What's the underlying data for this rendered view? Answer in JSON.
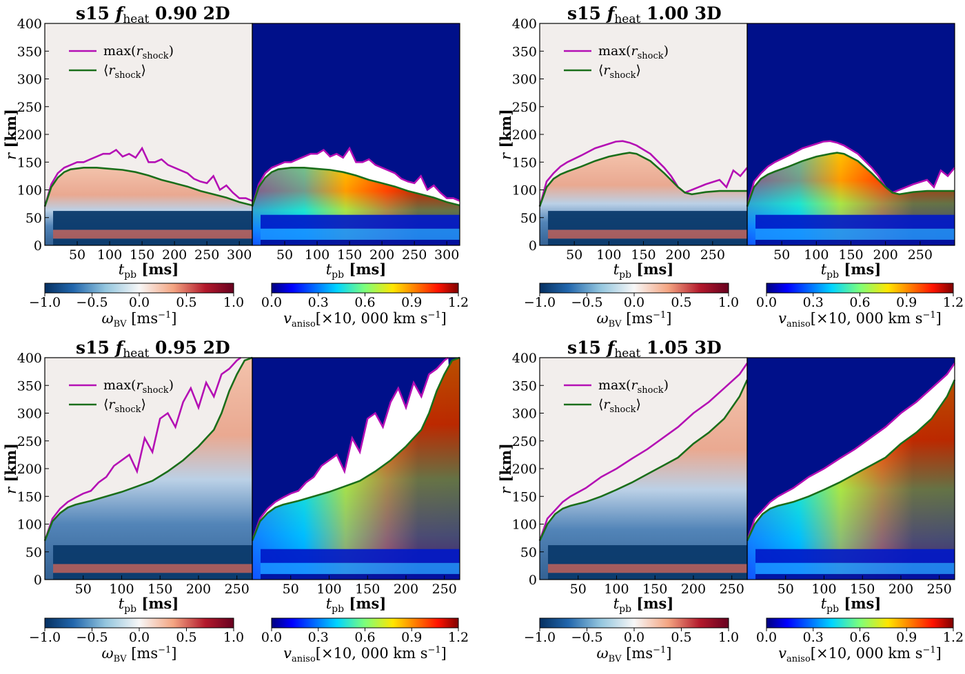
{
  "colors": {
    "max_shock": "#b40fb4",
    "mean_shock": "#1a6e1a",
    "cold_bg": "#0b3a6b",
    "aniso_bg": "#00108a"
  },
  "common": {
    "title_prefix": "s15",
    "fheat_symbol": "f",
    "fheat_sub": "heat",
    "ylabel_var": "r",
    "ylabel_unit": "[km]",
    "xlabel_var": "t",
    "xlabel_sub": "pb",
    "xlabel_unit": "[ms]",
    "legend_max_pre": "max(",
    "legend_max_var": "r",
    "legend_max_sub": "shock",
    "legend_max_post": ")",
    "legend_mean_pre": "⟨",
    "legend_mean_var": "r",
    "legend_mean_sub": "shock",
    "legend_mean_post": "⟩",
    "cbar1_label_var": "ω",
    "cbar1_label_sub": "BV",
    "cbar1_label_unit": " [ms",
    "cbar1_label_exp": "−1",
    "cbar1_label_close": "]",
    "cbar1_ticks": [
      "−1.0",
      "−0.5",
      "0.0",
      "0.5",
      "1.0"
    ],
    "cbar2_label_var": "v",
    "cbar2_label_sub": "aniso",
    "cbar2_label_unit": "[×10, 000 km s",
    "cbar2_label_exp": "−1",
    "cbar2_label_close": "]",
    "cbar2_ticks": [
      "0.0",
      "0.3",
      "0.6",
      "0.9",
      "1.2"
    ],
    "yticks": [
      "0",
      "50",
      "100",
      "150",
      "200",
      "250",
      "300",
      "350",
      "400"
    ]
  },
  "chart_data": [
    {
      "type": "heatmap",
      "title_value": "0.90 2D",
      "fheat": 0.9,
      "dim": "2D",
      "tmax": 320,
      "ylim": [
        0,
        400
      ],
      "xticks": [
        "50",
        "100",
        "150",
        "200",
        "250",
        "300"
      ],
      "series": [
        {
          "name": "max(r_shock)",
          "t": [
            0,
            10,
            20,
            30,
            40,
            50,
            60,
            70,
            80,
            90,
            100,
            110,
            120,
            130,
            140,
            150,
            160,
            170,
            180,
            190,
            200,
            210,
            220,
            230,
            240,
            250,
            260,
            270,
            280,
            290,
            300,
            310,
            320
          ],
          "r": [
            70,
            110,
            130,
            140,
            145,
            150,
            150,
            155,
            160,
            165,
            165,
            172,
            160,
            165,
            158,
            175,
            150,
            150,
            155,
            145,
            140,
            135,
            130,
            120,
            115,
            112,
            125,
            100,
            108,
            95,
            85,
            85,
            80
          ]
        },
        {
          "name": "<r_shock>",
          "t": [
            0,
            10,
            20,
            30,
            40,
            60,
            80,
            100,
            120,
            140,
            160,
            180,
            200,
            220,
            240,
            260,
            280,
            300,
            320
          ],
          "r": [
            70,
            105,
            122,
            132,
            137,
            140,
            140,
            138,
            136,
            132,
            126,
            118,
            112,
            106,
            98,
            92,
            86,
            78,
            72
          ]
        }
      ]
    },
    {
      "type": "heatmap",
      "title_value": "1.00 3D",
      "fheat": 1.0,
      "dim": "3D",
      "tmax": 300,
      "ylim": [
        0,
        400
      ],
      "xticks": [
        "50",
        "100",
        "150",
        "200",
        "250"
      ],
      "series": [
        {
          "name": "max(r_shock)",
          "t": [
            0,
            10,
            20,
            30,
            40,
            60,
            80,
            100,
            110,
            120,
            130,
            140,
            160,
            180,
            190,
            200,
            210,
            220,
            240,
            260,
            270,
            280,
            290,
            300
          ],
          "r": [
            70,
            115,
            130,
            142,
            150,
            162,
            175,
            183,
            187,
            188,
            185,
            180,
            165,
            140,
            125,
            105,
            95,
            100,
            110,
            118,
            105,
            135,
            125,
            140
          ]
        },
        {
          "name": "<r_shock>",
          "t": [
            0,
            10,
            20,
            30,
            40,
            60,
            80,
            100,
            120,
            130,
            140,
            160,
            180,
            200,
            210,
            220,
            240,
            260,
            280,
            300
          ],
          "r": [
            70,
            105,
            120,
            128,
            133,
            142,
            152,
            160,
            165,
            167,
            165,
            152,
            130,
            105,
            95,
            92,
            96,
            98,
            98,
            98
          ]
        }
      ]
    },
    {
      "type": "heatmap",
      "title_value": "0.95 2D",
      "fheat": 0.95,
      "dim": "2D",
      "tmax": 270,
      "ylim": [
        0,
        400
      ],
      "xticks": [
        "50",
        "100",
        "150",
        "200",
        "250"
      ],
      "series": [
        {
          "name": "max(r_shock)",
          "t": [
            0,
            10,
            20,
            30,
            40,
            50,
            60,
            70,
            80,
            90,
            100,
            110,
            120,
            130,
            140,
            150,
            160,
            170,
            180,
            190,
            200,
            210,
            220,
            230,
            240,
            250,
            255
          ],
          "r": [
            70,
            110,
            128,
            140,
            148,
            155,
            160,
            175,
            185,
            205,
            215,
            225,
            195,
            255,
            230,
            290,
            300,
            275,
            320,
            345,
            310,
            355,
            330,
            370,
            380,
            395,
            400
          ]
        },
        {
          "name": "<r_shock>",
          "t": [
            0,
            10,
            20,
            30,
            40,
            60,
            80,
            100,
            120,
            140,
            160,
            180,
            200,
            210,
            220,
            230,
            240,
            250,
            260,
            270
          ],
          "r": [
            70,
            105,
            120,
            130,
            135,
            142,
            150,
            158,
            168,
            178,
            195,
            215,
            240,
            255,
            270,
            300,
            340,
            370,
            395,
            400
          ]
        }
      ]
    },
    {
      "type": "heatmap",
      "title_value": "1.05 3D",
      "fheat": 1.05,
      "dim": "3D",
      "tmax": 270,
      "ylim": [
        0,
        400
      ],
      "xticks": [
        "50",
        "100",
        "150",
        "200",
        "250"
      ],
      "series": [
        {
          "name": "max(r_shock)",
          "t": [
            0,
            10,
            20,
            30,
            40,
            60,
            80,
            100,
            120,
            140,
            160,
            180,
            200,
            220,
            240,
            260,
            270
          ],
          "r": [
            70,
            110,
            125,
            140,
            150,
            165,
            185,
            200,
            218,
            235,
            255,
            275,
            300,
            320,
            345,
            370,
            390
          ]
        },
        {
          "name": "<r_shock>",
          "t": [
            0,
            10,
            20,
            30,
            40,
            60,
            80,
            100,
            120,
            140,
            160,
            180,
            200,
            220,
            240,
            260,
            270
          ],
          "r": [
            70,
            100,
            118,
            128,
            133,
            140,
            150,
            162,
            175,
            190,
            205,
            220,
            245,
            265,
            290,
            330,
            360
          ]
        }
      ]
    }
  ]
}
